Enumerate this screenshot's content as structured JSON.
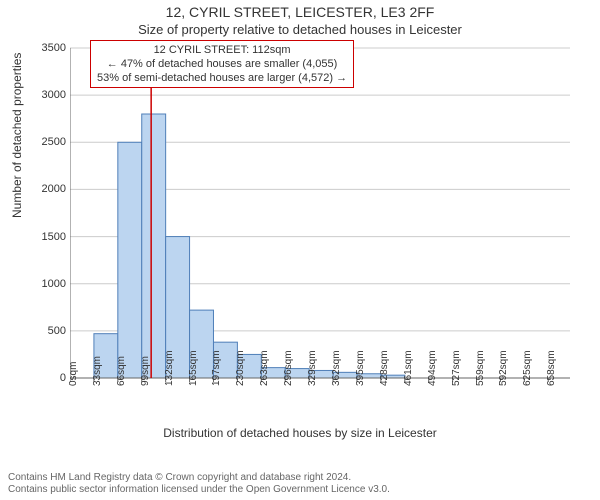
{
  "title": "12, CYRIL STREET, LEICESTER, LE3 2FF",
  "subtitle": "Size of property relative to detached houses in Leicester",
  "annotation": {
    "line1": "12 CYRIL STREET: 112sqm",
    "line2": "← 47% of detached houses are smaller (4,055)",
    "line3": "53% of semi-detached houses are larger (4,572) →",
    "border_color": "#cc0000",
    "bg_color": "#ffffff"
  },
  "chart": {
    "type": "bar",
    "y_label": "Number of detached properties",
    "x_label": "Distribution of detached houses by size in Leicester",
    "ylim": [
      0,
      3500
    ],
    "ytick_step": 500,
    "yticks": [
      0,
      500,
      1000,
      1500,
      2000,
      2500,
      3000,
      3500
    ],
    "x_categories": [
      "0sqm",
      "33sqm",
      "66sqm",
      "99sqm",
      "132sqm",
      "165sqm",
      "197sqm",
      "230sqm",
      "263sqm",
      "296sqm",
      "329sqm",
      "362sqm",
      "395sqm",
      "428sqm",
      "461sqm",
      "494sqm",
      "527sqm",
      "559sqm",
      "592sqm",
      "625sqm",
      "658sqm"
    ],
    "values": [
      0,
      470,
      2500,
      2800,
      1500,
      720,
      380,
      250,
      110,
      100,
      80,
      60,
      45,
      30,
      0,
      0,
      0,
      0,
      0,
      0,
      0
    ],
    "bar_fill": "#bcd5f0",
    "bar_stroke": "#4f7fb8",
    "axis_color": "#666666",
    "grid_color": "#cccccc",
    "tick_label_color": "#333333",
    "marker_value": 112,
    "marker_color": "#cc0000",
    "x_min": 0,
    "x_max": 690,
    "category_width": 33,
    "background_color": "#ffffff",
    "label_fontsize": 12,
    "tick_fontsize": 11
  },
  "footer": {
    "line1": "Contains HM Land Registry data © Crown copyright and database right 2024.",
    "line2": "Contains public sector information licensed under the Open Government Licence v3.0."
  }
}
